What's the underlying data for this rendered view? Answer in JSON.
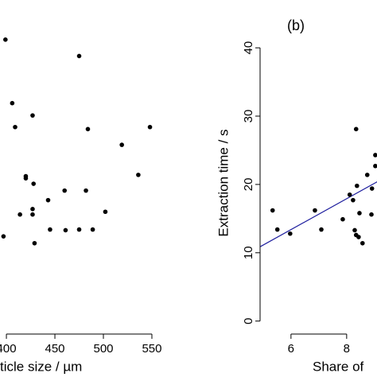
{
  "chart_data": [
    {
      "type": "scatter",
      "xlabel": "ticle size / µm",
      "xlim": [
        393.4,
        561.5
      ],
      "ylim": [
        -1.9,
        47
      ],
      "xticks": [
        400,
        450,
        500,
        550
      ],
      "series": [
        {
          "color": "#000000",
          "x": [
            399,
            475,
            406,
            409,
            427,
            484,
            548,
            519,
            420,
            420,
            536,
            428,
            460,
            443,
            482,
            427,
            427,
            502,
            414,
            397,
            429,
            445,
            461,
            475,
            489
          ],
          "values": [
            41.2,
            38.8,
            31.9,
            28.4,
            30.1,
            28.1,
            28.4,
            25.8,
            21.2,
            20.9,
            21.4,
            20.1,
            19.1,
            17.7,
            19.1,
            16.4,
            15.6,
            16.0,
            15.6,
            12.4,
            11.4,
            13.4,
            13.3,
            13.4,
            13.4
          ]
        }
      ]
    },
    {
      "type": "scatter",
      "title": "(b)",
      "xlabel": "Share of",
      "ylabel": "Extraction time / s",
      "xlim": [
        4.89,
        9.09
      ],
      "ylim": [
        -1.9,
        47
      ],
      "xticks": [
        6,
        8
      ],
      "yticks": [
        0,
        10,
        20,
        30,
        40
      ],
      "series": [
        {
          "color": "#000000",
          "x": [
            5.34,
            5.51,
            5.97,
            6.86,
            7.09,
            7.86,
            8.11,
            8.23,
            8.37,
            8.34,
            8.74,
            8.46,
            8.29,
            8.34,
            8.43,
            8.57,
            8.89,
            9.03,
            8.91,
            9.03
          ],
          "values": [
            16.2,
            13.4,
            12.8,
            16.2,
            13.4,
            14.9,
            18.5,
            17.7,
            19.8,
            28.1,
            21.4,
            15.8,
            13.3,
            12.6,
            12.3,
            11.4,
            15.6,
            24.3,
            19.4,
            22.7
          ]
        }
      ],
      "fit": {
        "color": "#1f1f9f",
        "x": [
          4.9,
          9.1
        ],
        "y": [
          10.9,
          20.4
        ]
      }
    }
  ]
}
